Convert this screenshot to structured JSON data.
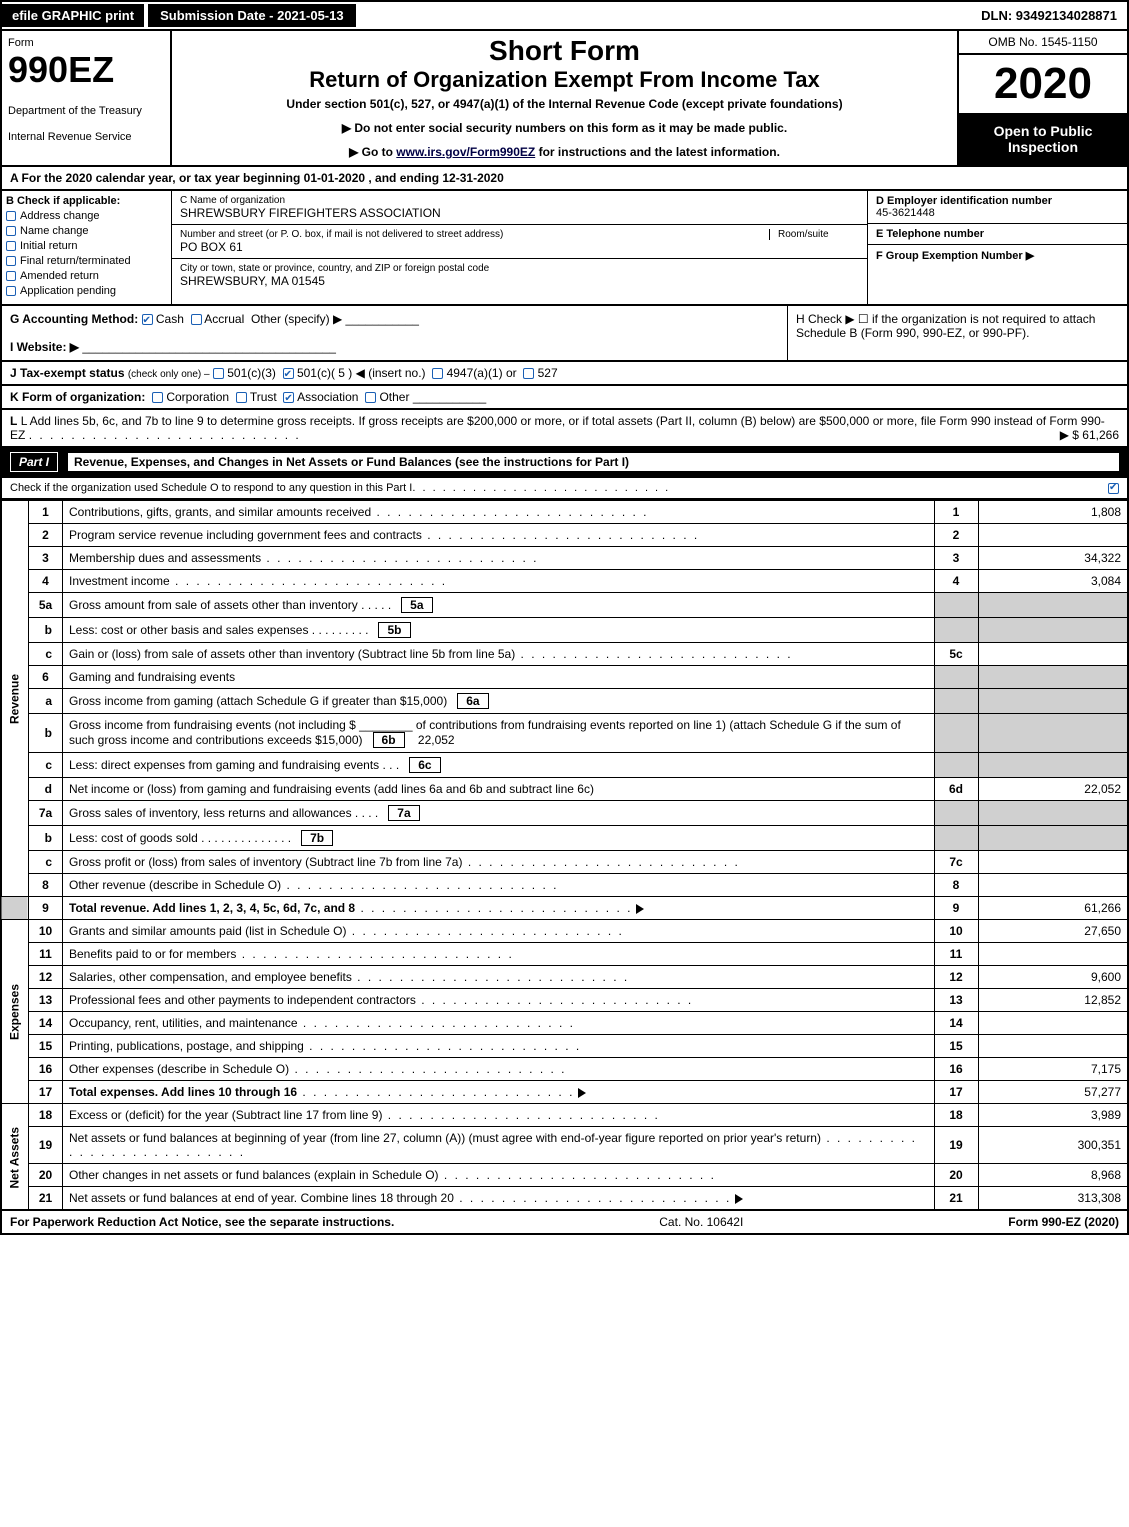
{
  "top": {
    "efile": "efile GRAPHIC print",
    "subdate": "Submission Date - 2021-05-13",
    "dln": "DLN: 93492134028871"
  },
  "header": {
    "form_label": "Form",
    "form_num": "990EZ",
    "dept": "Department of the Treasury",
    "irs": "Internal Revenue Service",
    "title1": "Short Form",
    "title2": "Return of Organization Exempt From Income Tax",
    "subtitle": "Under section 501(c), 527, or 4947(a)(1) of the Internal Revenue Code (except private foundations)",
    "note1": "▶ Do not enter social security numbers on this form as it may be made public.",
    "note2_prefix": "▶ Go to ",
    "note2_link": "www.irs.gov/Form990EZ",
    "note2_suffix": " for instructions and the latest information.",
    "omb": "OMB No. 1545-1150",
    "year": "2020",
    "open": "Open to Public Inspection"
  },
  "row_a": "A  For the 2020 calendar year, or tax year beginning 01-01-2020 , and ending 12-31-2020",
  "section_b": {
    "hdr": "B  Check if applicable:",
    "opts": [
      "Address change",
      "Name change",
      "Initial return",
      "Final return/terminated",
      "Amended return",
      "Application pending"
    ]
  },
  "section_c": {
    "lbl_name": "C Name of organization",
    "org_name": "SHREWSBURY FIREFIGHTERS ASSOCIATION",
    "lbl_addr": "Number and street (or P. O. box, if mail is not delivered to street address)",
    "addr": "PO BOX 61",
    "room_lbl": "Room/suite",
    "lbl_city": "City or town, state or province, country, and ZIP or foreign postal code",
    "city": "SHREWSBURY, MA  01545"
  },
  "section_d": {
    "lbl": "D Employer identification number",
    "ein": "45-3621448",
    "e_lbl": "E Telephone number",
    "f_lbl": "F Group Exemption Number  ▶"
  },
  "row_g": {
    "label": "G Accounting Method:",
    "cash": "Cash",
    "accrual": "Accrual",
    "other": "Other (specify) ▶"
  },
  "row_h": "H  Check ▶   ☐  if the organization is not required to attach Schedule B (Form 990, 990-EZ, or 990-PF).",
  "row_i": "I Website: ▶",
  "row_j": {
    "label": "J Tax-exempt status",
    "small": "(check only one) –",
    "o1": "501(c)(3)",
    "o2": "501(c)( 5 ) ◀ (insert no.)",
    "o3": "4947(a)(1) or",
    "o4": "527"
  },
  "row_k": {
    "label": "K Form of organization:",
    "opts": [
      "Corporation",
      "Trust",
      "Association",
      "Other"
    ]
  },
  "row_l": {
    "text": "L Add lines 5b, 6c, and 7b to line 9 to determine gross receipts. If gross receipts are $200,000 or more, or if total assets (Part II, column (B) below) are $500,000 or more, file Form 990 instead of Form 990-EZ",
    "amt": "▶ $ 61,266"
  },
  "part1": {
    "label": "Part I",
    "title": "Revenue, Expenses, and Changes in Net Assets or Fund Balances (see the instructions for Part I)",
    "sub": "Check if the organization used Schedule O to respond to any question in this Part I"
  },
  "revenue_label": "Revenue",
  "expenses_label": "Expenses",
  "netassets_label": "Net Assets",
  "lines": {
    "l1": {
      "n": "1",
      "t": "Contributions, gifts, grants, and similar amounts received",
      "ln": "1",
      "amt": "1,808"
    },
    "l2": {
      "n": "2",
      "t": "Program service revenue including government fees and contracts",
      "ln": "2",
      "amt": ""
    },
    "l3": {
      "n": "3",
      "t": "Membership dues and assessments",
      "ln": "3",
      "amt": "34,322"
    },
    "l4": {
      "n": "4",
      "t": "Investment income",
      "ln": "4",
      "amt": "3,084"
    },
    "l5a": {
      "n": "5a",
      "t": "Gross amount from sale of assets other than inventory",
      "box": "5a"
    },
    "l5b": {
      "n": "b",
      "t": "Less: cost or other basis and sales expenses",
      "box": "5b"
    },
    "l5c": {
      "n": "c",
      "t": "Gain or (loss) from sale of assets other than inventory (Subtract line 5b from line 5a)",
      "ln": "5c",
      "amt": ""
    },
    "l6": {
      "n": "6",
      "t": "Gaming and fundraising events"
    },
    "l6a": {
      "n": "a",
      "t": "Gross income from gaming (attach Schedule G if greater than $15,000)",
      "box": "6a"
    },
    "l6b": {
      "n": "b",
      "t": "Gross income from fundraising events (not including $ ________ of contributions from fundraising events reported on line 1) (attach Schedule G if the sum of such gross income and contributions exceeds $15,000)",
      "box": "6b",
      "boxamt": "22,052"
    },
    "l6c": {
      "n": "c",
      "t": "Less: direct expenses from gaming and fundraising events",
      "box": "6c"
    },
    "l6d": {
      "n": "d",
      "t": "Net income or (loss) from gaming and fundraising events (add lines 6a and 6b and subtract line 6c)",
      "ln": "6d",
      "amt": "22,052"
    },
    "l7a": {
      "n": "7a",
      "t": "Gross sales of inventory, less returns and allowances",
      "box": "7a"
    },
    "l7b": {
      "n": "b",
      "t": "Less: cost of goods sold",
      "box": "7b"
    },
    "l7c": {
      "n": "c",
      "t": "Gross profit or (loss) from sales of inventory (Subtract line 7b from line 7a)",
      "ln": "7c",
      "amt": ""
    },
    "l8": {
      "n": "8",
      "t": "Other revenue (describe in Schedule O)",
      "ln": "8",
      "amt": ""
    },
    "l9": {
      "n": "9",
      "t": "Total revenue. Add lines 1, 2, 3, 4, 5c, 6d, 7c, and 8",
      "ln": "9",
      "amt": "61,266",
      "bold": true
    },
    "l10": {
      "n": "10",
      "t": "Grants and similar amounts paid (list in Schedule O)",
      "ln": "10",
      "amt": "27,650"
    },
    "l11": {
      "n": "11",
      "t": "Benefits paid to or for members",
      "ln": "11",
      "amt": ""
    },
    "l12": {
      "n": "12",
      "t": "Salaries, other compensation, and employee benefits",
      "ln": "12",
      "amt": "9,600"
    },
    "l13": {
      "n": "13",
      "t": "Professional fees and other payments to independent contractors",
      "ln": "13",
      "amt": "12,852"
    },
    "l14": {
      "n": "14",
      "t": "Occupancy, rent, utilities, and maintenance",
      "ln": "14",
      "amt": ""
    },
    "l15": {
      "n": "15",
      "t": "Printing, publications, postage, and shipping",
      "ln": "15",
      "amt": ""
    },
    "l16": {
      "n": "16",
      "t": "Other expenses (describe in Schedule O)",
      "ln": "16",
      "amt": "7,175"
    },
    "l17": {
      "n": "17",
      "t": "Total expenses. Add lines 10 through 16",
      "ln": "17",
      "amt": "57,277",
      "bold": true
    },
    "l18": {
      "n": "18",
      "t": "Excess or (deficit) for the year (Subtract line 17 from line 9)",
      "ln": "18",
      "amt": "3,989"
    },
    "l19": {
      "n": "19",
      "t": "Net assets or fund balances at beginning of year (from line 27, column (A)) (must agree with end-of-year figure reported on prior year's return)",
      "ln": "19",
      "amt": "300,351"
    },
    "l20": {
      "n": "20",
      "t": "Other changes in net assets or fund balances (explain in Schedule O)",
      "ln": "20",
      "amt": "8,968"
    },
    "l21": {
      "n": "21",
      "t": "Net assets or fund balances at end of year. Combine lines 18 through 20",
      "ln": "21",
      "amt": "313,308"
    }
  },
  "footer": {
    "left": "For Paperwork Reduction Act Notice, see the separate instructions.",
    "mid": "Cat. No. 10642I",
    "right": "Form 990-EZ (2020)"
  }
}
